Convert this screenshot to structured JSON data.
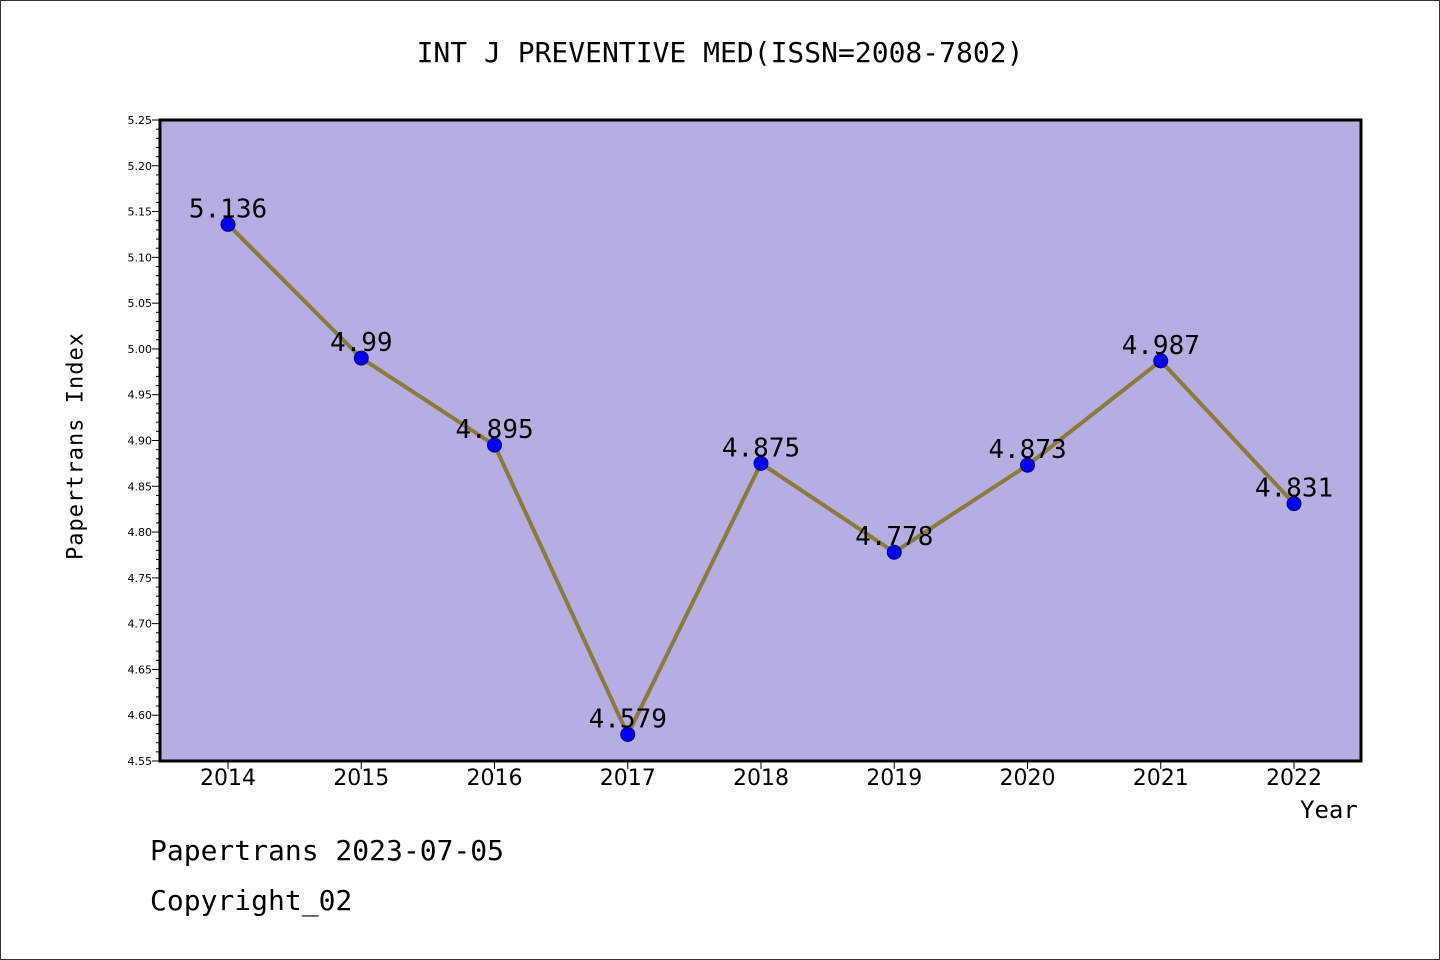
{
  "title": "INT J PREVENTIVE MED(ISSN=2008-7802)",
  "footer": {
    "date_line": "Papertrans 2023-07-05",
    "copyright_line": "Copyright_02"
  },
  "colors": {
    "plot_background": "#b4aee2",
    "line": "#8b7a3a",
    "marker": "#0000ee",
    "axis": "#000000"
  },
  "chart_data": {
    "type": "line",
    "title": "INT J PREVENTIVE MED(ISSN=2008-7802)",
    "xlabel": "Year",
    "ylabel": "Papertrans Index",
    "categories": [
      "2014",
      "2015",
      "2016",
      "2017",
      "2018",
      "2019",
      "2020",
      "2021",
      "2022"
    ],
    "series": [
      {
        "values": [
          5.136,
          4.99,
          4.895,
          4.579,
          4.875,
          4.778,
          4.873,
          4.987,
          4.831
        ],
        "labels": [
          "5.136",
          "4.99",
          "4.895",
          "4.579",
          "4.875",
          "4.778",
          "4.873",
          "4.987",
          "4.831"
        ]
      }
    ],
    "ylim": [
      4.55,
      5.25
    ],
    "yticks": [
      "4.55",
      "4.60",
      "4.65",
      "4.70",
      "4.75",
      "4.80",
      "4.85",
      "4.90",
      "4.95",
      "5.00",
      "5.05",
      "5.10",
      "5.15",
      "5.20",
      "5.25"
    ],
    "grid": false,
    "legend": "none"
  }
}
